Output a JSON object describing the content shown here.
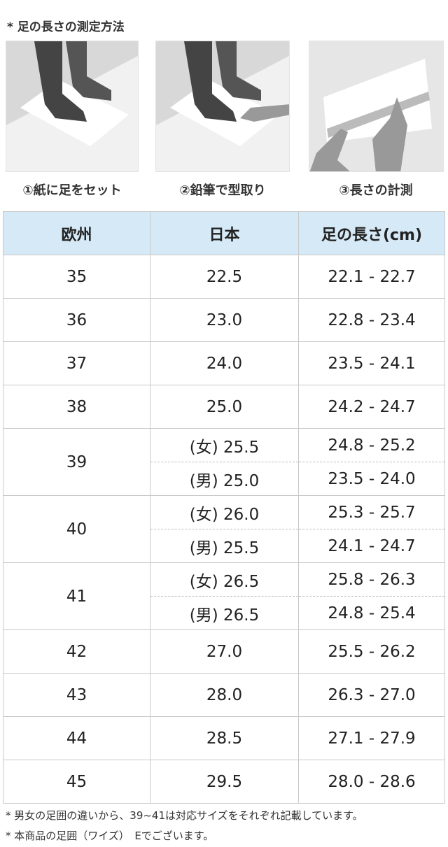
{
  "title": "* 足の長さの測定方法",
  "steps": [
    "①紙に足をセット",
    "②鉛筆で型取り",
    "③長さの計測"
  ],
  "table": {
    "headers": [
      "欧州",
      "日本",
      "足の長さ(cm)"
    ],
    "rows": [
      {
        "eu": "35",
        "jp": "22.5",
        "len": "22.1 - 22.7"
      },
      {
        "eu": "36",
        "jp": "23.0",
        "len": "22.8 - 23.4"
      },
      {
        "eu": "37",
        "jp": "24.0",
        "len": "23.5 - 24.1"
      },
      {
        "eu": "38",
        "jp": "25.0",
        "len": "24.2 - 24.7"
      },
      {
        "eu": "39",
        "sub": [
          {
            "jp": "(女) 25.5",
            "len": "24.8 - 25.2"
          },
          {
            "jp": "(男) 25.0",
            "len": "23.5 - 24.0"
          }
        ]
      },
      {
        "eu": "40",
        "sub": [
          {
            "jp": "(女) 26.0",
            "len": "25.3 - 25.7"
          },
          {
            "jp": "(男) 25.5",
            "len": "24.1 - 24.7"
          }
        ]
      },
      {
        "eu": "41",
        "sub": [
          {
            "jp": "(女) 26.5",
            "len": "25.8 - 26.3"
          },
          {
            "jp": "(男) 26.5",
            "len": "24.8 - 25.4"
          }
        ]
      },
      {
        "eu": "42",
        "jp": "27.0",
        "len": "25.5 - 26.2"
      },
      {
        "eu": "43",
        "jp": "28.0",
        "len": "26.3 - 27.0"
      },
      {
        "eu": "44",
        "jp": "28.5",
        "len": "27.1 - 27.9"
      },
      {
        "eu": "45",
        "jp": "29.5",
        "len": "28.0 - 28.6"
      }
    ]
  },
  "notes": [
    "* 男女の足囲の違いから、39~41は対応サイズをそれぞれ記載しています。",
    "* 本商品の足囲（ワイズ）　Eでございます。"
  ],
  "colors": {
    "header_bg": "#d6e9f6",
    "border": "#c8c8c8"
  }
}
